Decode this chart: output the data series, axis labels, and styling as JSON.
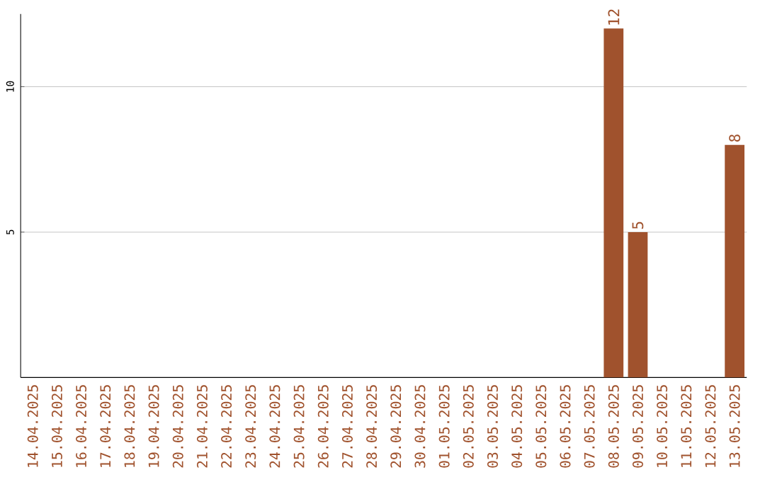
{
  "chart_data": {
    "type": "bar",
    "categories": [
      "14.04.2025",
      "15.04.2025",
      "16.04.2025",
      "17.04.2025",
      "18.04.2025",
      "19.04.2025",
      "20.04.2025",
      "21.04.2025",
      "22.04.2025",
      "23.04.2025",
      "24.04.2025",
      "25.04.2025",
      "26.04.2025",
      "27.04.2025",
      "28.04.2025",
      "29.04.2025",
      "30.04.2025",
      "01.05.2025",
      "02.05.2025",
      "03.05.2025",
      "04.05.2025",
      "05.05.2025",
      "06.05.2025",
      "07.05.2025",
      "08.05.2025",
      "09.05.2025",
      "10.05.2025",
      "11.05.2025",
      "12.05.2025",
      "13.05.2025"
    ],
    "values": [
      0,
      0,
      0,
      0,
      0,
      0,
      0,
      0,
      0,
      0,
      0,
      0,
      0,
      0,
      0,
      0,
      0,
      0,
      0,
      0,
      0,
      0,
      0,
      0,
      12,
      5,
      0,
      0,
      0,
      8
    ],
    "value_labels": [
      null,
      null,
      null,
      null,
      null,
      null,
      null,
      null,
      null,
      null,
      null,
      null,
      null,
      null,
      null,
      null,
      null,
      null,
      null,
      null,
      null,
      null,
      null,
      null,
      "12",
      "5",
      null,
      null,
      null,
      "8"
    ],
    "color": "#a0522d",
    "ylim": [
      0,
      12.5
    ],
    "yticks": [
      5,
      10
    ],
    "grid": "y"
  }
}
